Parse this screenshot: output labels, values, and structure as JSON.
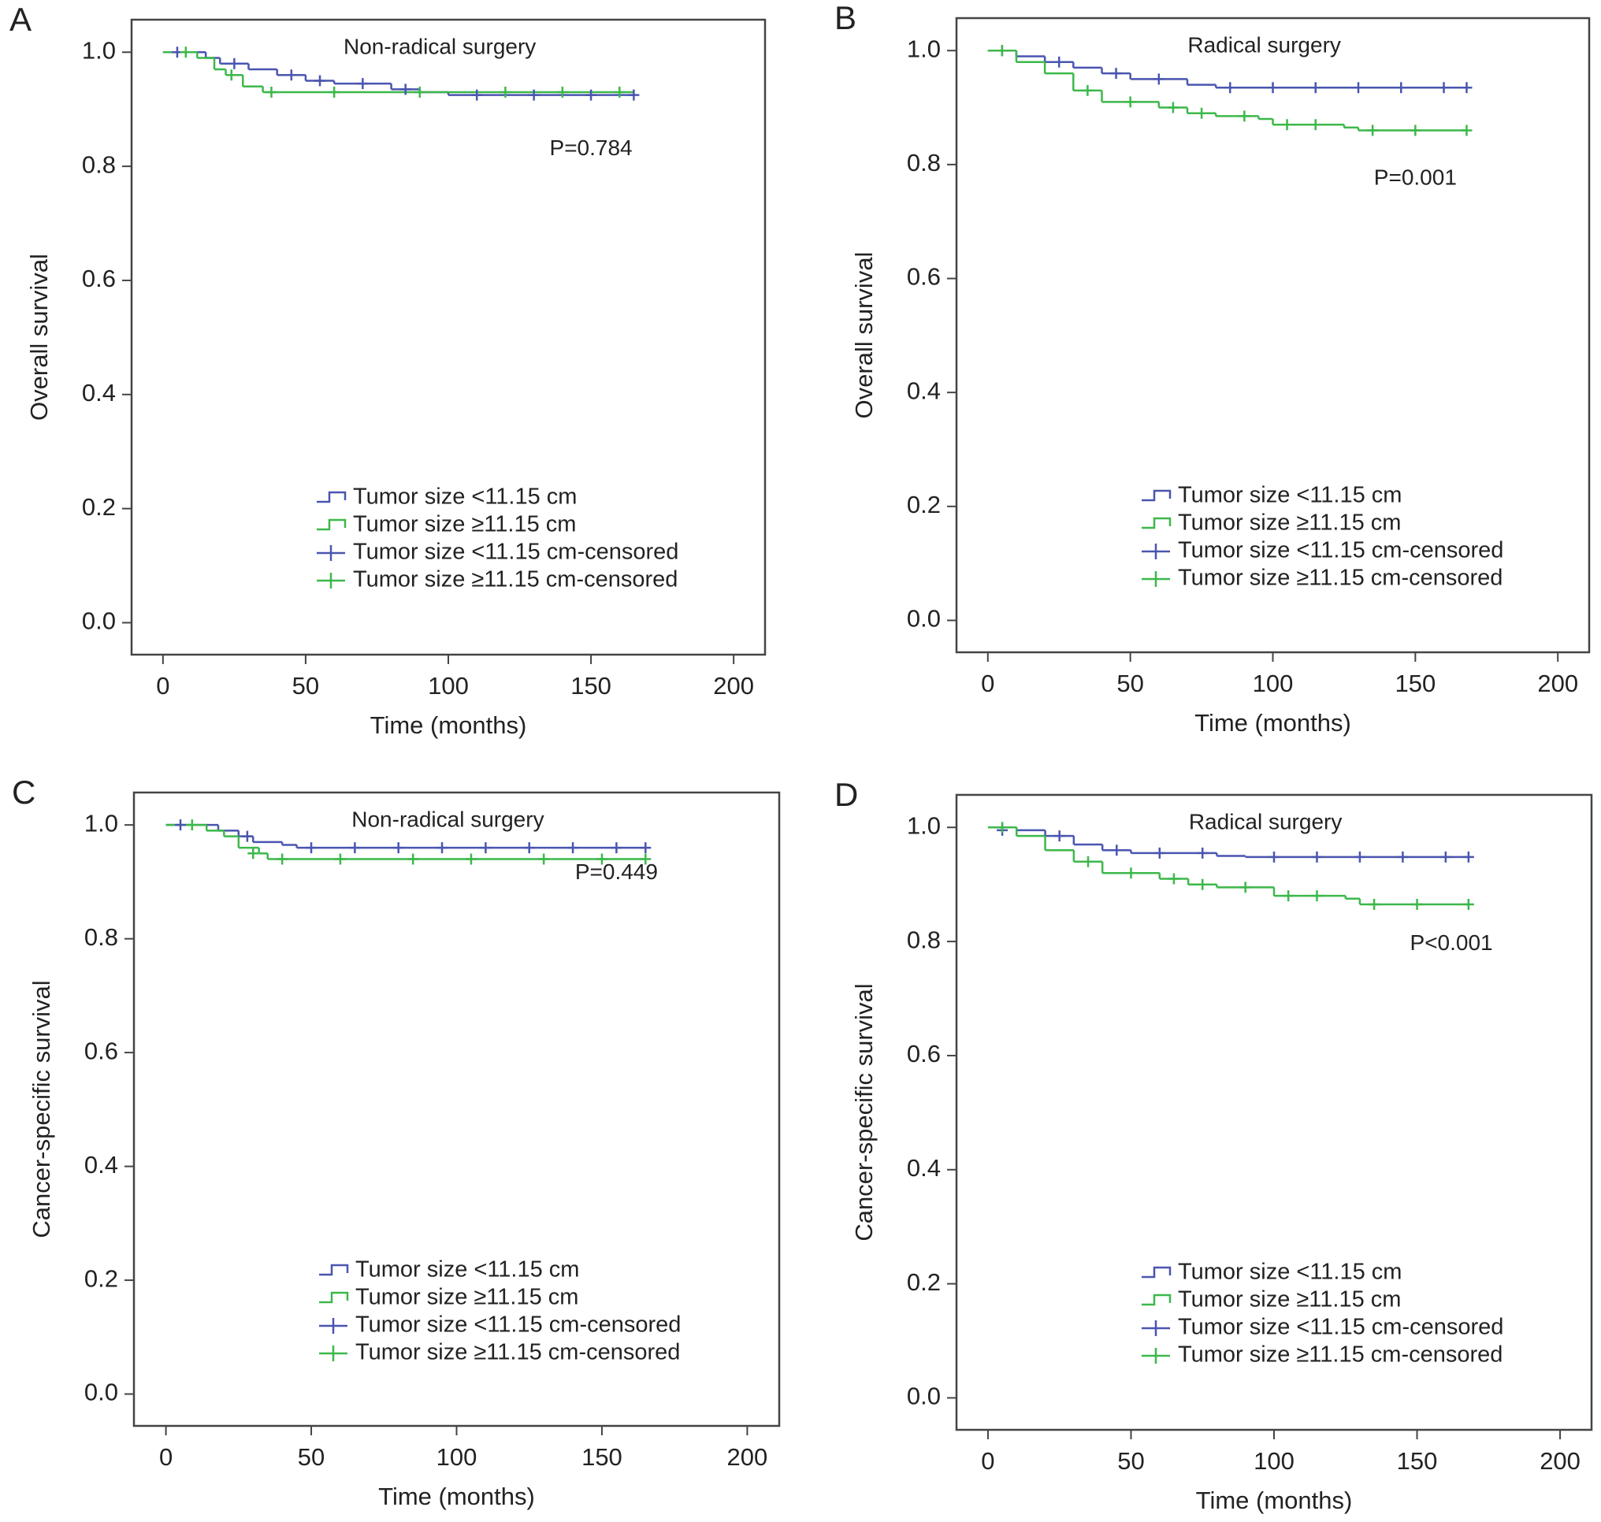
{
  "chart_data": [
    {
      "type": "line",
      "panel": "A",
      "title": "Non-radical surgery",
      "annotation": "P=0.784",
      "xlabel": "Time (months)",
      "ylabel": "Overall survival",
      "xlim": [
        -11,
        211
      ],
      "ylim": [
        -0.056,
        1.057
      ],
      "xticks": [
        0,
        50,
        100,
        150,
        200
      ],
      "yticks": [
        {
          "value": 0,
          "label": "0.0"
        },
        0.2,
        0.4,
        0.6,
        0.8,
        {
          "value": 1,
          "label": "1.0"
        }
      ],
      "series": [
        {
          "name": "Tumor size <11.15 cm",
          "color": "#4a55b0",
          "style": "step",
          "x": [
            0,
            15,
            20,
            30,
            40,
            50,
            60,
            80,
            90,
            100,
            165
          ],
          "values": [
            1.0,
            0.99,
            0.98,
            0.97,
            0.96,
            0.95,
            0.945,
            0.935,
            0.93,
            0.925,
            0.925
          ]
        },
        {
          "name": "Tumor size ≥11.15 cm",
          "color": "#3cb84a",
          "style": "step",
          "x": [
            0,
            12,
            18,
            22,
            28,
            35,
            165
          ],
          "values": [
            1.0,
            0.99,
            0.97,
            0.96,
            0.94,
            0.93,
            0.93
          ]
        },
        {
          "name": "Tumor size <11.15 cm-censored",
          "color": "#4a55b0",
          "style": "censored",
          "x": [
            5,
            25,
            45,
            55,
            70,
            85,
            110,
            130,
            150,
            165
          ],
          "values": [
            1.0,
            0.98,
            0.96,
            0.95,
            0.945,
            0.935,
            0.925,
            0.925,
            0.925,
            0.925
          ]
        },
        {
          "name": "Tumor size ≥11.15 cm-censored",
          "color": "#3cb84a",
          "style": "censored",
          "x": [
            8,
            24,
            38,
            60,
            90,
            120,
            140,
            160
          ],
          "values": [
            1.0,
            0.96,
            0.93,
            0.93,
            0.93,
            0.93,
            0.93,
            0.93
          ]
        }
      ]
    },
    {
      "type": "line",
      "panel": "B",
      "title": "Radical surgery",
      "annotation": "P=0.001",
      "xlabel": "Time (months)",
      "ylabel": "Overall survival",
      "xlim": [
        -11,
        211
      ],
      "ylim": [
        -0.056,
        1.057
      ],
      "xticks": [
        0,
        50,
        100,
        150,
        200
      ],
      "yticks": [
        {
          "value": 0,
          "label": "0.0"
        },
        0.2,
        0.4,
        0.6,
        0.8,
        {
          "value": 1,
          "label": "1.0"
        }
      ],
      "series": [
        {
          "name": "Tumor size <11.15 cm",
          "color": "#4a55b0",
          "style": "step",
          "x": [
            0,
            10,
            20,
            30,
            40,
            50,
            70,
            80,
            168
          ],
          "values": [
            1.0,
            0.99,
            0.98,
            0.97,
            0.96,
            0.95,
            0.94,
            0.935,
            0.935
          ]
        },
        {
          "name": "Tumor size ≥11.15 cm",
          "color": "#3cb84a",
          "style": "step",
          "x": [
            0,
            10,
            20,
            30,
            40,
            60,
            70,
            80,
            95,
            100,
            125,
            130,
            168
          ],
          "values": [
            1.0,
            0.98,
            0.96,
            0.93,
            0.91,
            0.9,
            0.89,
            0.885,
            0.88,
            0.87,
            0.865,
            0.86,
            0.86
          ]
        },
        {
          "name": "Tumor size <11.15 cm-censored",
          "color": "#4a55b0",
          "style": "censored",
          "x": [
            5,
            25,
            45,
            60,
            85,
            100,
            115,
            130,
            145,
            160,
            168
          ],
          "values": [
            1.0,
            0.98,
            0.96,
            0.95,
            0.935,
            0.935,
            0.935,
            0.935,
            0.935,
            0.935,
            0.935
          ]
        },
        {
          "name": "Tumor size ≥11.15 cm-censored",
          "color": "#3cb84a",
          "style": "censored",
          "x": [
            5,
            35,
            50,
            65,
            75,
            90,
            105,
            115,
            135,
            150,
            168
          ],
          "values": [
            1.0,
            0.93,
            0.91,
            0.9,
            0.89,
            0.885,
            0.87,
            0.87,
            0.86,
            0.86,
            0.86
          ]
        }
      ]
    },
    {
      "type": "line",
      "panel": "C",
      "title": "Non-radical surgery",
      "annotation": "P=0.449",
      "xlabel": "Time (months)",
      "ylabel": "Cancer-specific survival",
      "xlim": [
        -11,
        211
      ],
      "ylim": [
        -0.056,
        1.057
      ],
      "xticks": [
        0,
        50,
        100,
        150,
        200
      ],
      "yticks": [
        {
          "value": 0,
          "label": "0.0"
        },
        0.2,
        0.4,
        0.6,
        0.8,
        {
          "value": 1,
          "label": "1.0"
        }
      ],
      "series": [
        {
          "name": "Tumor size <11.15 cm",
          "color": "#4a55b0",
          "style": "step",
          "x": [
            0,
            12,
            18,
            25,
            30,
            40,
            45,
            165
          ],
          "values": [
            1.0,
            1.0,
            0.99,
            0.98,
            0.97,
            0.965,
            0.96,
            0.96
          ]
        },
        {
          "name": "Tumor size ≥11.15 cm",
          "color": "#3cb84a",
          "style": "step",
          "x": [
            0,
            14,
            20,
            25,
            32,
            35,
            165
          ],
          "values": [
            1.0,
            0.99,
            0.98,
            0.96,
            0.95,
            0.94,
            0.94
          ]
        },
        {
          "name": "Tumor size <11.15 cm-censored",
          "color": "#4a55b0",
          "style": "censored",
          "x": [
            5,
            28,
            50,
            65,
            80,
            95,
            110,
            125,
            140,
            155,
            165
          ],
          "values": [
            1.0,
            0.98,
            0.96,
            0.96,
            0.96,
            0.96,
            0.96,
            0.96,
            0.96,
            0.96,
            0.96
          ]
        },
        {
          "name": "Tumor size ≥11.15 cm-censored",
          "color": "#3cb84a",
          "style": "censored",
          "x": [
            9,
            30,
            40,
            60,
            85,
            105,
            130,
            150,
            165
          ],
          "values": [
            1.0,
            0.95,
            0.94,
            0.94,
            0.94,
            0.94,
            0.94,
            0.94,
            0.94
          ]
        }
      ]
    },
    {
      "type": "line",
      "panel": "D",
      "title": "Radical surgery",
      "annotation": "P<0.001",
      "xlabel": "Time (months)",
      "ylabel": "Cancer-specific survival",
      "xlim": [
        -11,
        211
      ],
      "ylim": [
        -0.056,
        1.057
      ],
      "xticks": [
        0,
        50,
        100,
        150,
        200
      ],
      "yticks": [
        {
          "value": 0,
          "label": "0.0"
        },
        0.2,
        0.4,
        0.6,
        0.8,
        {
          "value": 1,
          "label": "1.0"
        }
      ],
      "series": [
        {
          "name": "Tumor size <11.15 cm",
          "color": "#4a55b0",
          "style": "step",
          "x": [
            0,
            10,
            20,
            30,
            40,
            50,
            80,
            90,
            168
          ],
          "values": [
            1.0,
            0.995,
            0.985,
            0.97,
            0.96,
            0.955,
            0.95,
            0.948,
            0.948
          ]
        },
        {
          "name": "Tumor size ≥11.15 cm",
          "color": "#3cb84a",
          "style": "step",
          "x": [
            0,
            10,
            20,
            30,
            40,
            60,
            70,
            80,
            100,
            125,
            130,
            168
          ],
          "values": [
            1.0,
            0.985,
            0.96,
            0.94,
            0.92,
            0.91,
            0.9,
            0.895,
            0.88,
            0.875,
            0.865,
            0.865
          ]
        },
        {
          "name": "Tumor size <11.15 cm-censored",
          "color": "#4a55b0",
          "style": "censored",
          "x": [
            5,
            25,
            45,
            60,
            75,
            100,
            115,
            130,
            145,
            160,
            168
          ],
          "values": [
            0.995,
            0.985,
            0.96,
            0.955,
            0.955,
            0.948,
            0.948,
            0.948,
            0.948,
            0.948,
            0.948
          ]
        },
        {
          "name": "Tumor size ≥11.15 cm-censored",
          "color": "#3cb84a",
          "style": "censored",
          "x": [
            5,
            35,
            50,
            65,
            75,
            90,
            105,
            115,
            135,
            150,
            168
          ],
          "values": [
            1.0,
            0.94,
            0.92,
            0.91,
            0.9,
            0.895,
            0.88,
            0.88,
            0.865,
            0.865,
            0.865
          ]
        }
      ]
    }
  ]
}
